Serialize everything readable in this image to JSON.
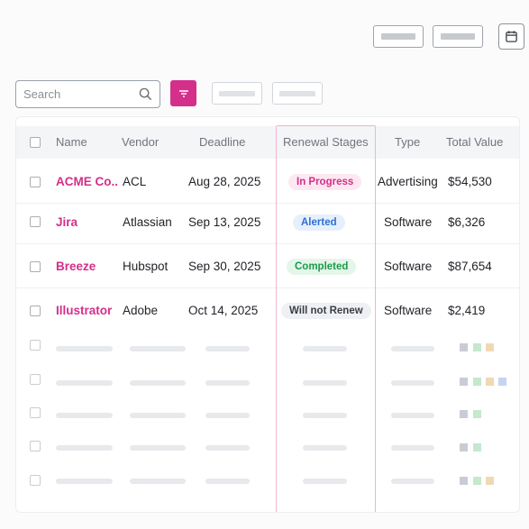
{
  "search": {
    "placeholder": "Search"
  },
  "table": {
    "headers": {
      "name": "Name",
      "vendor": "Vendor",
      "deadline": "Deadline",
      "stage": "Renewal Stages",
      "type": "Type",
      "value": "Total Value"
    },
    "rows": [
      {
        "name": "ACME Co..",
        "vendor": "ACL",
        "deadline": "Aug 28, 2025",
        "stage": "In Progress",
        "type": "Advertising",
        "value": "$54,530"
      },
      {
        "name": "Jira",
        "vendor": "Atlassian",
        "deadline": "Sep 13, 2025",
        "stage": "Alerted",
        "type": "Software",
        "value": "$6,326"
      },
      {
        "name": "Breeze",
        "vendor": "Hubspot",
        "deadline": "Sep 30, 2025",
        "stage": "Completed",
        "type": "Software",
        "value": "$87,654"
      },
      {
        "name": "Illustrator",
        "vendor": "Adobe",
        "deadline": "Oct 14, 2025",
        "stage": "Will not Renew",
        "type": "Software",
        "value": "$2,419"
      }
    ]
  },
  "colors": {
    "accent": "#d42f8a",
    "stage_in_progress": "#fde8f1",
    "stage_alerted": "#e6f0fd",
    "stage_completed": "#e3f6e9",
    "stage_will_not_renew": "#eef0f3"
  },
  "icons": {
    "search": "search-icon",
    "filter": "filter-icon",
    "calendar": "calendar-icon"
  }
}
